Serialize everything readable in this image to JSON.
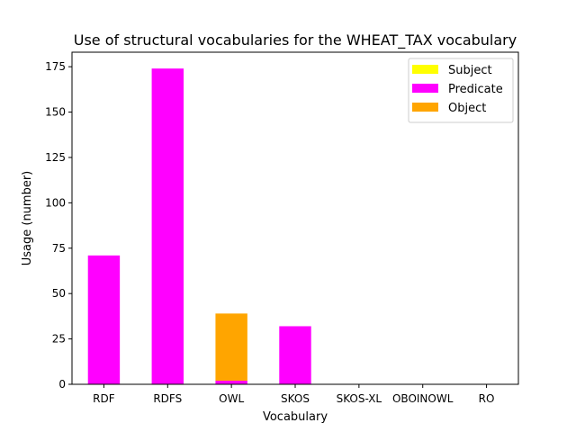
{
  "chart_data": {
    "type": "bar",
    "stacked": true,
    "title": "Use of structural vocabularies for the WHEAT_TAX vocabulary",
    "xlabel": "Vocabulary",
    "ylabel": "Usage (number)",
    "categories": [
      "RDF",
      "RDFS",
      "OWL",
      "SKOS",
      "SKOS-XL",
      "OBOINOWL",
      "RO"
    ],
    "series": [
      {
        "name": "Subject",
        "color": "#ffff00",
        "values": [
          0,
          0,
          0,
          0,
          0,
          0,
          0
        ]
      },
      {
        "name": "Predicate",
        "color": "#ff00ff",
        "values": [
          71,
          174,
          2,
          32,
          0,
          0,
          0
        ]
      },
      {
        "name": "Object",
        "color": "#ffa500",
        "values": [
          0,
          0,
          37,
          0,
          0,
          0,
          0
        ]
      }
    ],
    "ylim": [
      0,
      183
    ],
    "yticks": [
      0,
      25,
      50,
      75,
      100,
      125,
      150,
      175
    ],
    "grid": false,
    "legend_position": "top-right"
  }
}
